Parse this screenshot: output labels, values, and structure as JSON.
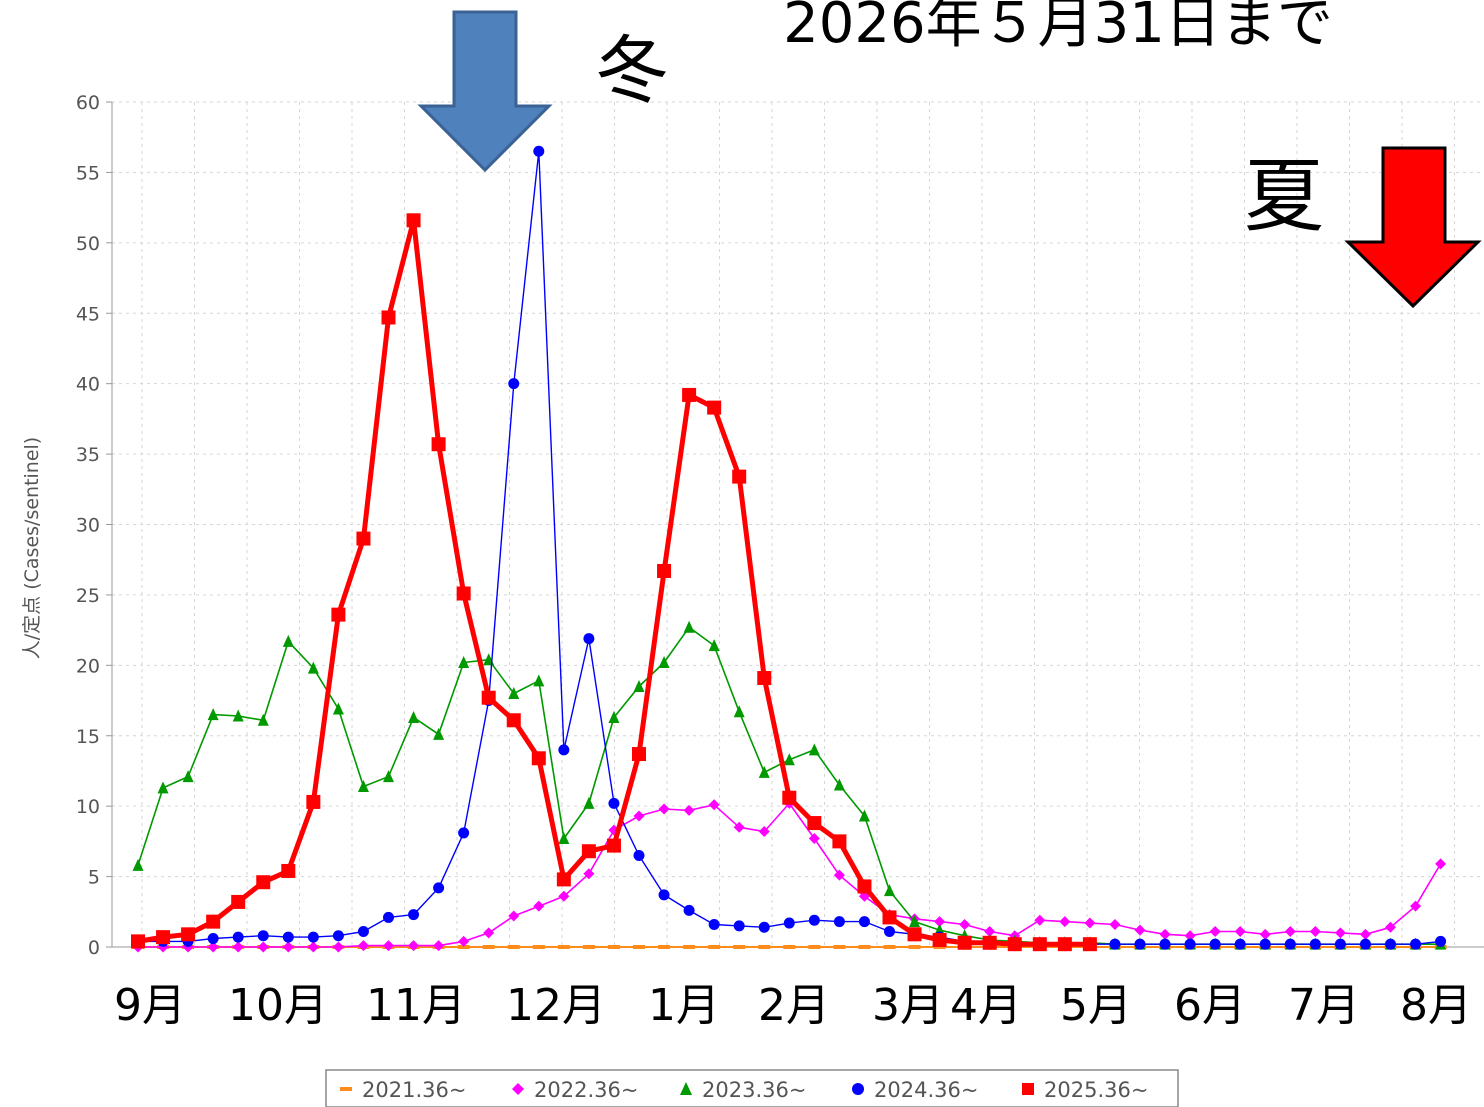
{
  "header": {
    "date_note": "2026年５月31日まで",
    "winter_label": "冬",
    "summer_label": "夏"
  },
  "colors": {
    "winter_arrow": "#4f81bd",
    "summer_arrow": "#ff0000"
  },
  "chart_data": {
    "type": "line",
    "title": "",
    "xlabel": "",
    "ylabel": "人/定点 (Cases/sentinel)",
    "ylim": [
      0,
      60
    ],
    "yticks": [
      "0",
      "5",
      "10",
      "15",
      "20",
      "25",
      "30",
      "35",
      "40",
      "45",
      "50",
      "55",
      "60"
    ],
    "x_range": [
      36,
      88
    ],
    "x_unit": "week number counted from week 36 (week 53 = first week of the next year)",
    "month_labels": [
      "9月",
      "10月",
      "11月",
      "12月",
      "1月",
      "2月",
      "3月",
      "4月",
      "5月",
      "6月",
      "7月",
      "8月"
    ],
    "grid": true,
    "legend_position": "bottom",
    "series": [
      {
        "name": "2021.36~",
        "color": "#ff8c1a",
        "marker": "dash",
        "x": [
          36,
          37,
          38,
          39,
          40,
          41,
          42,
          43,
          44,
          45,
          46,
          47,
          48,
          49,
          50,
          51,
          52,
          53,
          54,
          55,
          56,
          57,
          58,
          59,
          60,
          61,
          62,
          63,
          64,
          65,
          66,
          67,
          68,
          69,
          70,
          71,
          72,
          73,
          74,
          75,
          76,
          77,
          78,
          79,
          80,
          81,
          82,
          83,
          84,
          85,
          86,
          87,
          88
        ],
        "y": [
          0,
          0,
          0,
          0,
          0,
          0,
          0,
          0,
          0,
          0,
          0,
          0,
          0,
          0,
          0,
          0,
          0,
          0,
          0,
          0,
          0,
          0,
          0,
          0,
          0,
          0,
          0,
          0,
          0,
          0,
          0,
          0,
          0,
          0,
          0,
          0,
          0,
          0,
          0,
          0,
          0,
          0,
          0,
          0,
          0,
          0,
          0,
          0,
          0,
          0,
          0,
          0,
          0
        ]
      },
      {
        "name": "2022.36~",
        "color": "#ff00ff",
        "marker": "diamond",
        "x": [
          36,
          37,
          38,
          39,
          40,
          41,
          42,
          43,
          44,
          45,
          46,
          47,
          48,
          49,
          50,
          51,
          52,
          53,
          54,
          55,
          56,
          57,
          58,
          59,
          60,
          61,
          62,
          63,
          64,
          65,
          66,
          67,
          68,
          69,
          70,
          71,
          72,
          73,
          74,
          75,
          76,
          77,
          78,
          79,
          80,
          81,
          82,
          83,
          84,
          85,
          86,
          87,
          88
        ],
        "y": [
          0,
          0,
          0,
          0,
          0,
          0,
          0,
          0,
          0,
          0.1,
          0.1,
          0.1,
          0.1,
          0.4,
          1.0,
          2.2,
          2.9,
          3.6,
          5.2,
          8.3,
          9.3,
          9.8,
          9.7,
          10.1,
          8.5,
          8.2,
          10.2,
          7.7,
          5.1,
          3.6,
          2.3,
          2.0,
          1.8,
          1.6,
          1.1,
          0.8,
          1.9,
          1.8,
          1.7,
          1.6,
          1.2,
          0.9,
          0.8,
          1.1,
          1.1,
          0.9,
          1.1,
          1.1,
          1.0,
          0.9,
          1.4,
          2.9,
          5.9
        ]
      },
      {
        "name": "2023.36~",
        "color": "#009900",
        "marker": "triangle",
        "x": [
          36,
          37,
          38,
          39,
          40,
          41,
          42,
          43,
          44,
          45,
          46,
          47,
          48,
          49,
          50,
          51,
          52,
          53,
          54,
          55,
          56,
          57,
          58,
          59,
          60,
          61,
          62,
          63,
          64,
          65,
          66,
          67,
          68,
          69,
          70,
          71,
          72,
          73,
          74,
          75,
          76,
          77,
          78,
          79,
          80,
          81,
          82,
          83,
          84,
          85,
          86,
          87,
          88
        ],
        "y": [
          5.8,
          11.3,
          12.1,
          16.5,
          16.4,
          16.1,
          21.7,
          19.8,
          16.9,
          11.4,
          12.1,
          16.3,
          15.1,
          20.2,
          20.4,
          18.0,
          18.9,
          7.7,
          10.2,
          16.3,
          18.5,
          20.2,
          22.7,
          21.4,
          16.7,
          12.4,
          13.3,
          14.0,
          11.5,
          9.3,
          4.0,
          1.8,
          1.2,
          0.8,
          0.5,
          0.4,
          0.3,
          0.3,
          0.3,
          0.2,
          0.2,
          0.2,
          0.2,
          0.2,
          0.2,
          0.2,
          0.2,
          0.2,
          0.2,
          0.2,
          0.2,
          0.2,
          0.2
        ]
      },
      {
        "name": "2024.36~",
        "color": "#0000ff",
        "marker": "circle",
        "x": [
          36,
          37,
          38,
          39,
          40,
          41,
          42,
          43,
          44,
          45,
          46,
          47,
          48,
          49,
          50,
          51,
          52,
          53,
          54,
          55,
          56,
          57,
          58,
          59,
          60,
          61,
          62,
          63,
          64,
          65,
          66,
          67,
          68,
          69,
          70,
          71,
          72,
          73,
          74,
          75,
          76,
          77,
          78,
          79,
          80,
          81,
          82,
          83,
          84,
          85,
          86,
          87,
          88
        ],
        "y": [
          0.4,
          0.4,
          0.4,
          0.6,
          0.7,
          0.8,
          0.7,
          0.7,
          0.8,
          1.1,
          2.1,
          2.3,
          4.2,
          8.1,
          17.5,
          40.0,
          56.5,
          14.0,
          21.9,
          10.2,
          6.5,
          3.7,
          2.6,
          1.6,
          1.5,
          1.4,
          1.7,
          1.9,
          1.8,
          1.8,
          1.1,
          0.9,
          0.7,
          0.4,
          0.2,
          0.2,
          0.2,
          0.2,
          0.2,
          0.2,
          0.2,
          0.2,
          0.2,
          0.2,
          0.2,
          0.2,
          0.2,
          0.2,
          0.2,
          0.2,
          0.2,
          0.2,
          0.4
        ]
      },
      {
        "name": "2025.36~",
        "color": "#ff0000",
        "marker": "square",
        "x": [
          36,
          37,
          38,
          39,
          40,
          41,
          42,
          43,
          44,
          45,
          46,
          47,
          48,
          49,
          50,
          51,
          52,
          53,
          54,
          55,
          56,
          57,
          58,
          59,
          60,
          61,
          62,
          63,
          64,
          65,
          66,
          67,
          68,
          69,
          70,
          71,
          72,
          73,
          74
        ],
        "y": [
          0.4,
          0.7,
          0.9,
          1.8,
          3.2,
          4.6,
          5.4,
          10.3,
          23.6,
          29.0,
          44.7,
          51.6,
          35.7,
          25.1,
          17.7,
          16.1,
          13.4,
          4.8,
          6.8,
          7.2,
          13.7,
          26.7,
          39.2,
          38.3,
          33.4,
          19.1,
          10.6,
          8.8,
          7.5,
          4.3,
          2.1,
          0.9,
          0.5,
          0.3,
          0.3,
          0.2,
          0.2,
          0.2,
          0.2
        ]
      }
    ]
  }
}
